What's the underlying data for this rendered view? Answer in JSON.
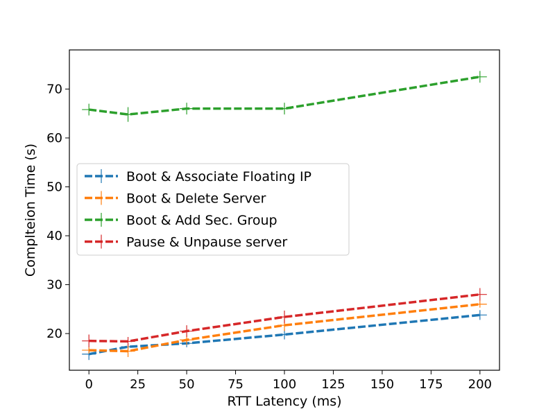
{
  "chart_data": {
    "type": "line",
    "title": "",
    "xlabel": "RTT Latency (ms)",
    "ylabel": "Complteion Time (s)",
    "xlim": [
      -10,
      210
    ],
    "ylim": [
      12.5,
      78
    ],
    "xticks": [
      0,
      25,
      50,
      75,
      100,
      125,
      150,
      175,
      200
    ],
    "yticks": [
      20,
      30,
      40,
      50,
      60,
      70
    ],
    "grid": false,
    "legend_position": "center-left",
    "x": [
      0,
      20,
      50,
      100,
      200
    ],
    "series": [
      {
        "name": "Boot & Associate Floating IP",
        "color": "#1f77b4",
        "values": [
          15.8,
          17.3,
          18.0,
          19.8,
          23.8
        ],
        "errors": [
          1.2,
          0.6,
          0.8,
          1.0,
          1.0
        ]
      },
      {
        "name": "Boot & Delete Server",
        "color": "#ff7f0e",
        "values": [
          16.6,
          16.4,
          18.7,
          21.7,
          26.0
        ],
        "errors": [
          0.7,
          1.2,
          1.0,
          1.2,
          0.7
        ]
      },
      {
        "name": "Boot & Add Sec. Group",
        "color": "#2ca02c",
        "values": [
          65.8,
          64.8,
          66.0,
          66.0,
          72.5
        ],
        "errors": [
          1.2,
          1.5,
          1.2,
          1.2,
          1.2
        ]
      },
      {
        "name": "Pause & Unpause server",
        "color": "#d62728",
        "values": [
          18.5,
          18.4,
          20.5,
          23.4,
          28.0
        ],
        "errors": [
          1.3,
          0.9,
          1.2,
          1.3,
          1.3
        ]
      }
    ]
  }
}
